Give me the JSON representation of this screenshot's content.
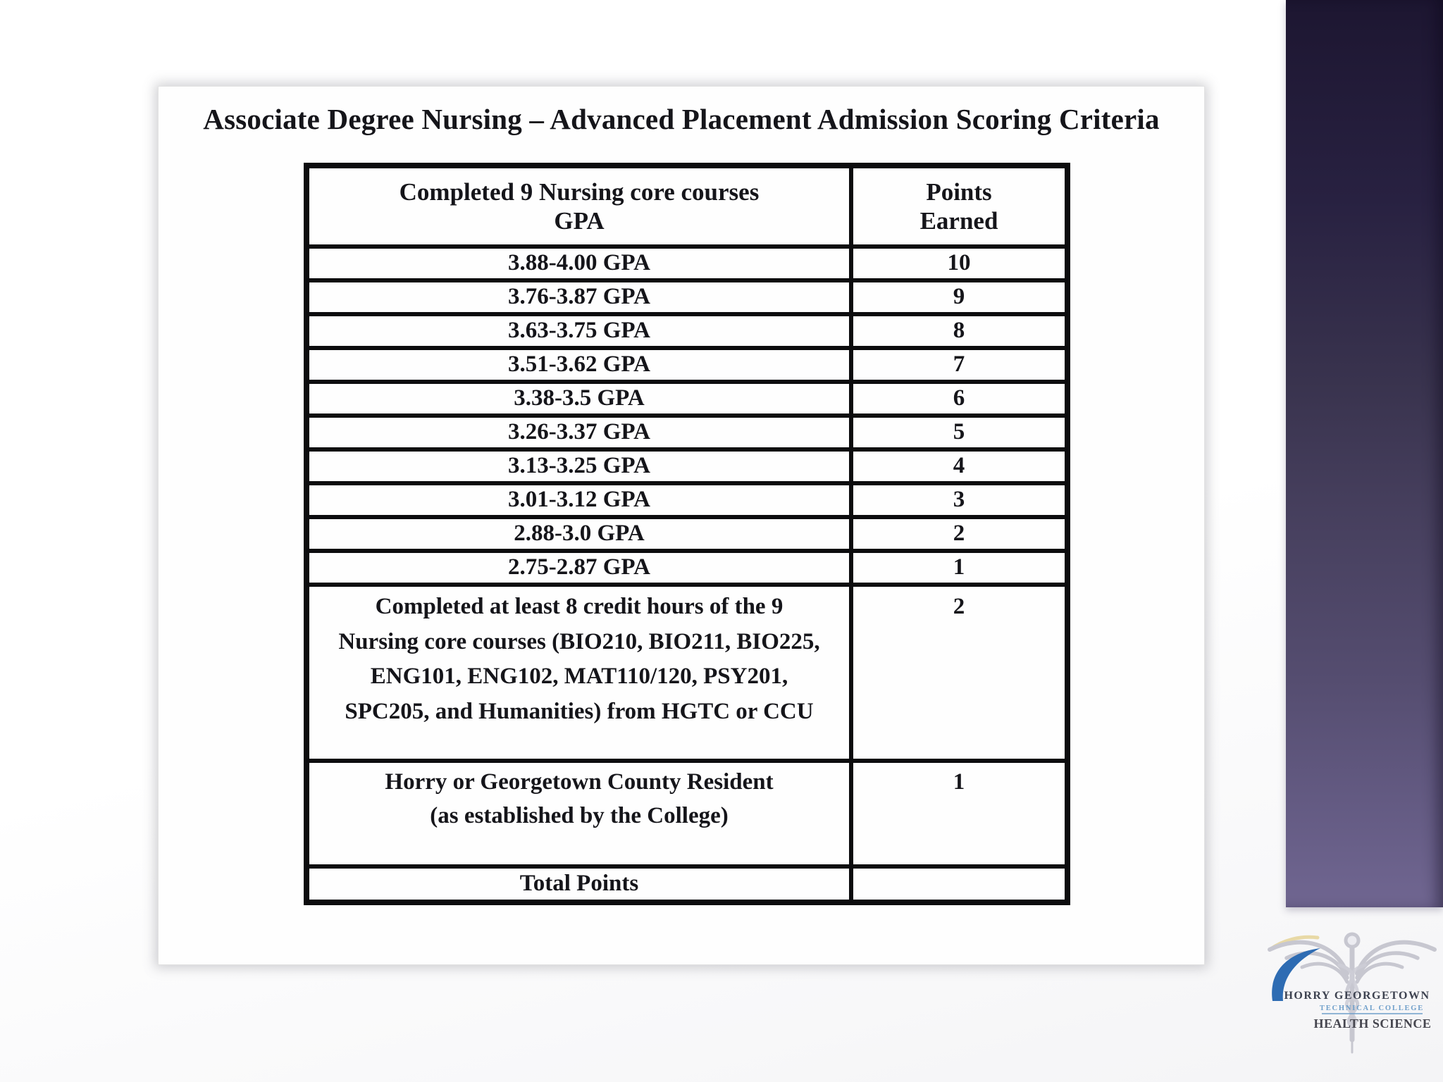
{
  "slide": {
    "title": "Associate Degree Nursing – Advanced Placement Admission Scoring Criteria"
  },
  "table": {
    "header": {
      "criteria_line1": "Completed 9 Nursing core courses",
      "criteria_line2": "GPA",
      "points_line1": "Points",
      "points_line2": "Earned"
    },
    "rows": [
      {
        "criteria": "3.88-4.00 GPA",
        "points": "10"
      },
      {
        "criteria": "3.76-3.87 GPA",
        "points": "9"
      },
      {
        "criteria": "3.63-3.75 GPA",
        "points": "8"
      },
      {
        "criteria": "3.51-3.62 GPA",
        "points": "7"
      },
      {
        "criteria": "3.38-3.5 GPA",
        "points": "6"
      },
      {
        "criteria": "3.26-3.37 GPA",
        "points": "5"
      },
      {
        "criteria": "3.13-3.25 GPA",
        "points": "4"
      },
      {
        "criteria": "3.01-3.12 GPA",
        "points": "3"
      },
      {
        "criteria": "2.88-3.0 GPA",
        "points": "2"
      },
      {
        "criteria": "2.75-2.87 GPA",
        "points": "1"
      },
      {
        "criteria": "Completed at least 8 credit hours of the 9 Nursing core courses (BIO210, BIO211, BIO225, ENG101, ENG102, MAT110/120, PSY201, SPC205, and Humanities) from HGTC or CCU",
        "points": "2"
      },
      {
        "criteria": "Horry or Georgetown County Resident (as established by the College)",
        "points": "1"
      },
      {
        "criteria": "Total Points",
        "points": ""
      }
    ]
  },
  "logo": {
    "line1": "HORRY GEORGETOWN",
    "line2": "TECHNICAL COLLEGE",
    "line3": "HEALTH SCIENCE"
  },
  "colors": {
    "accent_bar_top": "#1d1631",
    "accent_bar_bottom": "#706691",
    "logo_swoosh_blue": "#2e6cb3",
    "logo_college_blue": "#6f9fca",
    "logo_text_gray": "#3d4250",
    "caduceus_gray": "#c7c7d0"
  }
}
